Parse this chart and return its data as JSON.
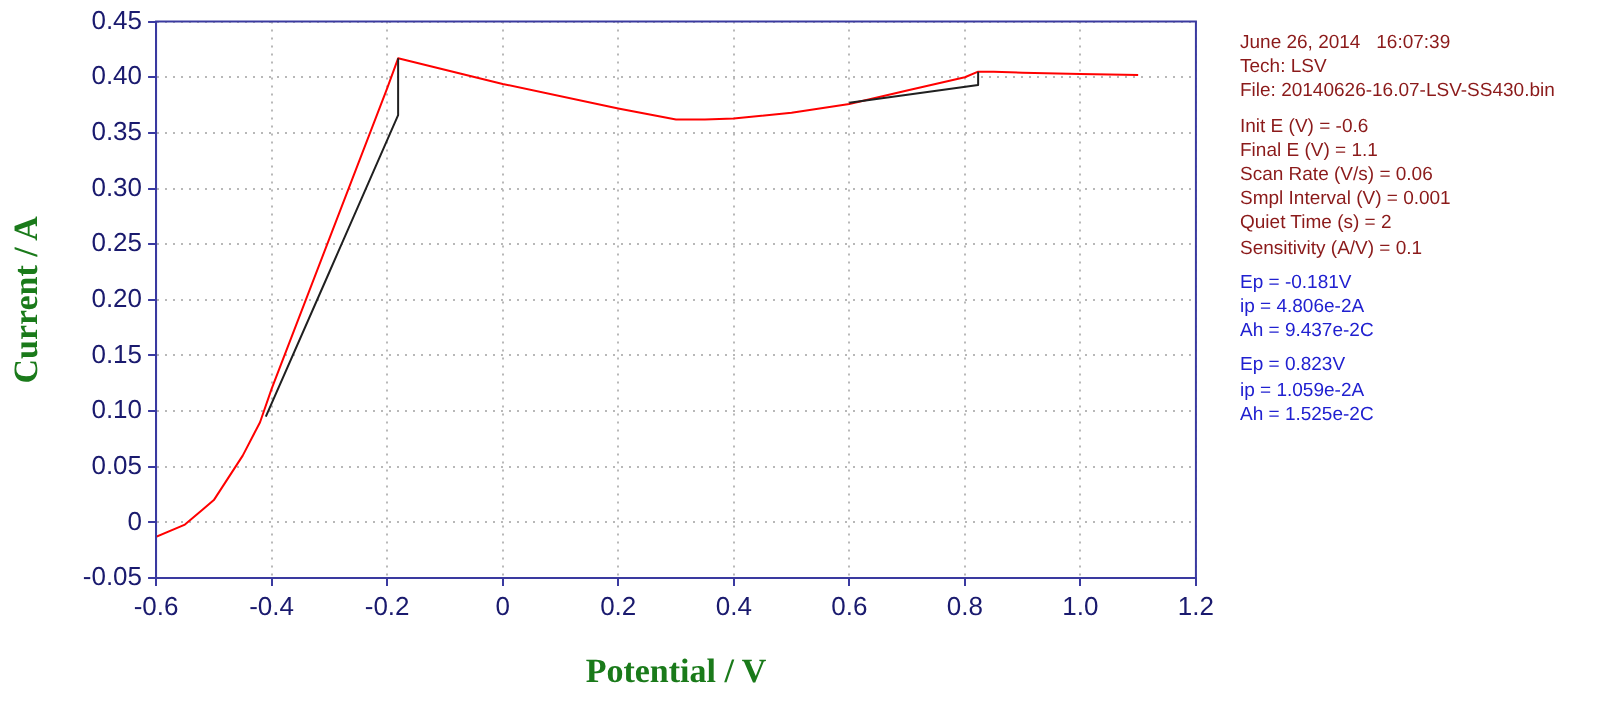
{
  "chart_data": {
    "type": "line",
    "xlabel": "Potential / V",
    "ylabel": "Current / A",
    "xlim": [
      -0.6,
      1.2
    ],
    "xticks": [
      {
        "value": -0.6,
        "label": "-0.6"
      },
      {
        "value": -0.4,
        "label": "-0.4"
      },
      {
        "value": -0.2,
        "label": "-0.2"
      },
      0,
      {
        "value": 0.2,
        "label": "0.2"
      },
      {
        "value": 0.4,
        "label": "0.4"
      },
      {
        "value": 0.6,
        "label": "0.6"
      },
      {
        "value": 0.8,
        "label": "0.8"
      },
      {
        "value": 1,
        "label": "1.0"
      },
      {
        "value": 1.2,
        "label": "1.2"
      }
    ],
    "ylim": [
      -0.05,
      0.45
    ],
    "yticks": [
      {
        "value": -0.05,
        "label": "-0.05"
      },
      0,
      {
        "value": 0.05,
        "label": "0.05"
      },
      {
        "value": 0.1,
        "label": "0.10"
      },
      {
        "value": 0.15,
        "label": "0.15"
      },
      {
        "value": 0.2,
        "label": "0.20"
      },
      {
        "value": 0.25,
        "label": "0.25"
      },
      {
        "value": 0.3,
        "label": "0.30"
      },
      {
        "value": 0.35,
        "label": "0.35"
      },
      {
        "value": 0.4,
        "label": "0.40"
      },
      {
        "value": 0.45,
        "label": "0.45"
      }
    ],
    "grid": true,
    "legend": false,
    "marker": "none",
    "line_style": "solid",
    "series": [
      {
        "color": "#202020",
        "x": [
          -0.41,
          -0.3,
          -0.181,
          -0.181
        ],
        "values": [
          0.095,
          0.225,
          0.366,
          0.417
        ]
      },
      {
        "color": "#202020",
        "x": [
          0.6,
          0.823,
          0.823
        ],
        "values": [
          0.377,
          0.393,
          0.405
        ]
      },
      {
        "color": "#ff0000",
        "x": [
          -0.6,
          -0.55,
          -0.5,
          -0.45,
          -0.42,
          -0.4,
          -0.3,
          -0.2,
          -0.181,
          0,
          0.2,
          0.3,
          0.35,
          0.4,
          0.5,
          0.6,
          0.7,
          0.8,
          0.823,
          0.85,
          0.9,
          1.0,
          1.1
        ],
        "values": [
          -0.013,
          -0.002,
          0.02,
          0.06,
          0.09,
          0.12,
          0.255,
          0.39,
          0.417,
          0.394,
          0.372,
          0.362,
          0.362,
          0.363,
          0.368,
          0.376,
          0.388,
          0.4,
          0.405,
          0.405,
          0.404,
          0.403,
          0.402
        ]
      }
    ],
    "annotations": [
      "June 26, 2014   16:07:39",
      "Tech: LSV",
      "File: 20140626-16.07-LSV-SS430.bin",
      "Init E (V) = -0.6",
      "Final E (V) = 1.1",
      "Scan Rate (V/s) = 0.06",
      "Smpl Interval (V) = 0.001",
      "Quiet Time (s) = 2",
      "Sensitivity (A/V) = 0.1",
      "Ep = -0.181V",
      "ip = 4.806e-2A",
      "Ah = 9.437e-2C",
      "Ep = 0.823V",
      "ip = 1.059e-2A",
      "Ah = 1.525e-2C"
    ]
  }
}
